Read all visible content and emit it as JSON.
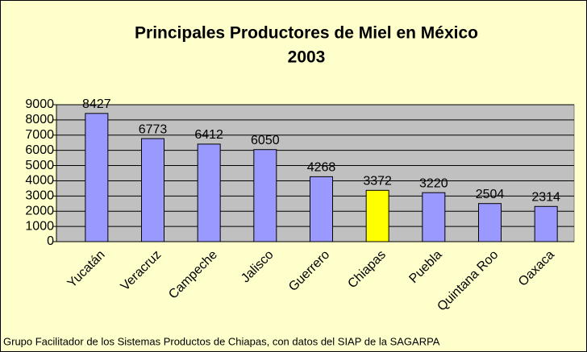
{
  "chart_data": {
    "type": "bar",
    "title": "Principales Productores de Miel en México",
    "subtitle": "2003",
    "categories": [
      "Yucatán",
      "Veracruz",
      "Campeche",
      "Jalisco",
      "Guerrero",
      "Chiapas",
      "Puebla",
      "Quintana Roo",
      "Oaxaca"
    ],
    "values": [
      8427,
      6773,
      6412,
      6050,
      4268,
      3372,
      3220,
      2504,
      2314
    ],
    "colors": [
      "#9999ff",
      "#9999ff",
      "#9999ff",
      "#9999ff",
      "#9999ff",
      "#ffff00",
      "#9999ff",
      "#9999ff",
      "#9999ff"
    ],
    "ylim": [
      0,
      9000
    ],
    "yticks": [
      0,
      1000,
      2000,
      3000,
      4000,
      5000,
      6000,
      7000,
      8000,
      9000
    ],
    "grid": true,
    "note": "Grupo Facilitador de los Sistemas Productos de Chiapas, con datos del SIAP de la SAGARPA"
  }
}
